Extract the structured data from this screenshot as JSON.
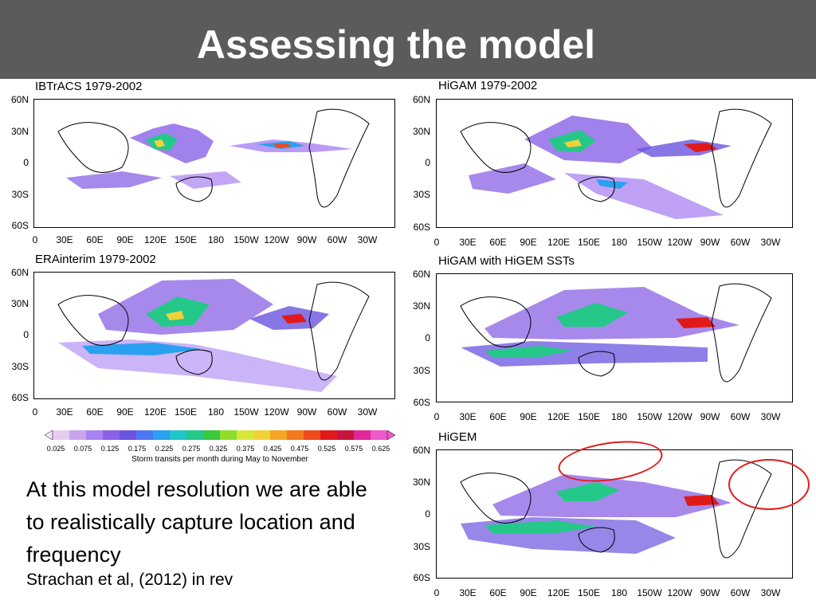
{
  "slide": {
    "title": "Assessing the model"
  },
  "panels": [
    {
      "title": "IBTrACS 1979-2002"
    },
    {
      "title": "HiGAM 1979-2002"
    },
    {
      "title": "ERAinterim 1979-2002"
    },
    {
      "title": "HiGAM with HiGEM SSTs"
    },
    {
      "title": "HiGEM"
    }
  ],
  "axes": {
    "lat_labels": [
      "60N",
      "30N",
      "0",
      "30S",
      "60S"
    ],
    "lon_labels": [
      "0",
      "30E",
      "60E",
      "90E",
      "120E",
      "150E",
      "180",
      "150W",
      "120W",
      "90W",
      "60W",
      "30W"
    ]
  },
  "colorbar": {
    "labels": [
      "0.025",
      "0.075",
      "0.125",
      "0.175",
      "0.225",
      "0.275",
      "0.325",
      "0.375",
      "0.425",
      "0.475",
      "0.525",
      "0.575",
      "0.625"
    ],
    "caption": "Storm transits per month during May to November",
    "colors": [
      "#e6ccf0",
      "#c8a5eb",
      "#a982f2",
      "#8a62e6",
      "#6a54e0",
      "#4a78f0",
      "#2aa0f0",
      "#1ec6c8",
      "#26c88a",
      "#3cc83c",
      "#8ede2a",
      "#d6e83a",
      "#f0d23a",
      "#f5a623",
      "#f27a1e",
      "#ee4a1e",
      "#e01a1a",
      "#c8143c",
      "#e0289a",
      "#ee5ac8"
    ]
  },
  "text": {
    "body": "At this model resolution we are able to realistically capture location and frequency",
    "citation": "Strachan et al, (2012) in rev"
  }
}
